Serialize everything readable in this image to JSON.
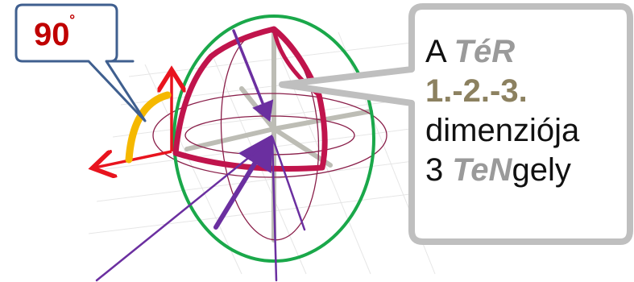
{
  "angle_callout": {
    "value": "90",
    "unit": "˚",
    "text_color": "#c00000",
    "border_color": "#3f5f8f"
  },
  "space_callout": {
    "line1_prefix": "A ",
    "line1_term": "TéR",
    "line2": "1.-2.-3.",
    "line3": "dimenziója",
    "line4_prefix": "3 ",
    "line4_term": "TeN",
    "line4_suffix": "gely",
    "highlight_grey": "#9a9a9a",
    "highlight_olive": "#8c8160",
    "border_color": "#bfbfbf"
  },
  "colors": {
    "sphere_outline": "#1aa84a",
    "great_circle": "#c0144c",
    "wireframe": "#8a1f4a",
    "axes": "#bdbdb5",
    "vectors": "#6b2fa0",
    "red_arrows": "#e8141e",
    "angle_arc": "#f5b800"
  },
  "icons": [
    "arrow-icon"
  ]
}
